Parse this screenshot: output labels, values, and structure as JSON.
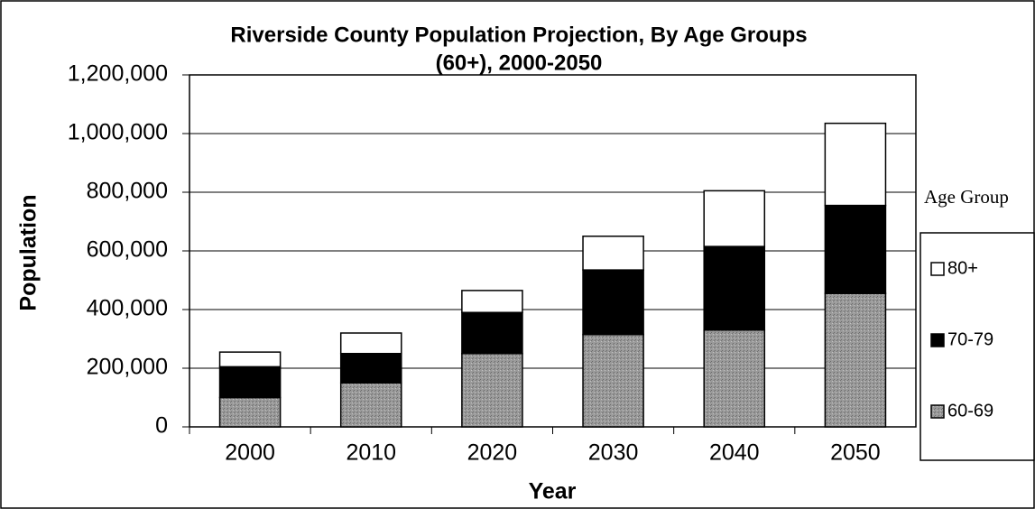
{
  "chart_data": {
    "type": "stacked_bar",
    "title_lines": [
      "Riverside County Population Projection, By Age Groups",
      "(60+), 2000-2050"
    ],
    "x_label": "Year",
    "y_label": "Population",
    "legend_title": "Age Group",
    "legend": "right",
    "categories": [
      "2000",
      "2010",
      "2020",
      "2030",
      "2040",
      "2050"
    ],
    "series": [
      {
        "name": "60-69",
        "color": "#9a9a9a",
        "values": [
          100000,
          150000,
          250000,
          315000,
          330000,
          455000
        ]
      },
      {
        "name": "70-79",
        "color": "#000000",
        "values": [
          105000,
          100000,
          140000,
          220000,
          285000,
          300000
        ]
      },
      {
        "name": "80+",
        "color": "#ffffff",
        "values": [
          50000,
          70000,
          75000,
          115000,
          190000,
          280000
        ]
      }
    ],
    "ylim": [
      0,
      1200000
    ],
    "yticks": [
      0,
      {
        "value": 200000,
        "label": "200,000"
      },
      {
        "value": 400000,
        "label": "400,000"
      },
      {
        "value": 600000,
        "label": "600,000"
      },
      {
        "value": 800000,
        "label": "800,000"
      },
      {
        "value": 1000000,
        "label": "1,000,000"
      },
      {
        "value": 1200000,
        "label": "1,200,000"
      }
    ],
    "grid": true
  }
}
